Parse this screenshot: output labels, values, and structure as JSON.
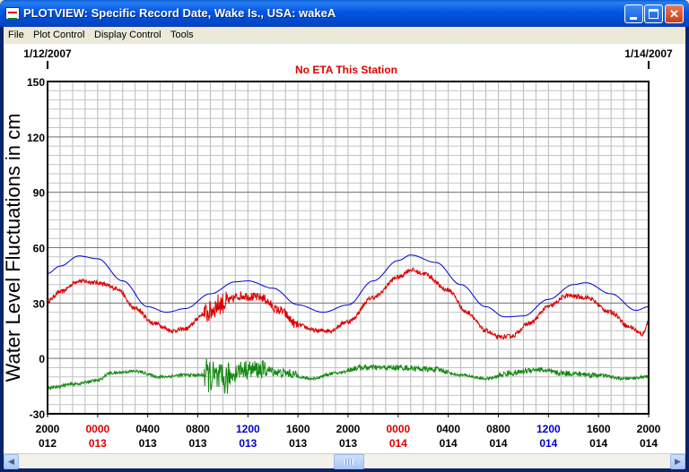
{
  "window": {
    "title": "PLOTVIEW: Specific Record Date, Wake Is., USA: wakeA",
    "minimize_icon": "minimize-icon",
    "maximize_icon": "maximize-icon",
    "close_icon": "close-icon"
  },
  "menu": {
    "items": [
      "File",
      "Plot Control",
      "Display Control",
      "Tools"
    ]
  },
  "chart_header": {
    "start_date": "1/12/2007",
    "end_date": "1/14/2007",
    "eta_message": "No ETA This Station",
    "eta_color": "#dd0000"
  },
  "chart_data": {
    "type": "line",
    "title": "No ETA This Station",
    "ylabel": "Water Level Fluctuations in cm",
    "xlabel": "",
    "ylim": [
      -30,
      150
    ],
    "yticks": [
      -30,
      0,
      30,
      60,
      90,
      120,
      150
    ],
    "grid": true,
    "x_unit": "hours since first tick (2000 day 012)",
    "xlim": [
      0,
      48
    ],
    "xticks": [
      {
        "x": 0,
        "time": "2000",
        "day": "012",
        "time_color": "#000000",
        "day_color": "#000000"
      },
      {
        "x": 4,
        "time": "0000",
        "day": "013",
        "time_color": "#dd0000",
        "day_color": "#dd0000"
      },
      {
        "x": 8,
        "time": "0400",
        "day": "013",
        "time_color": "#000000",
        "day_color": "#000000"
      },
      {
        "x": 12,
        "time": "0800",
        "day": "013",
        "time_color": "#000000",
        "day_color": "#000000"
      },
      {
        "x": 16,
        "time": "1200",
        "day": "013",
        "time_color": "#0000cc",
        "day_color": "#0000cc"
      },
      {
        "x": 20,
        "time": "1600",
        "day": "013",
        "time_color": "#000000",
        "day_color": "#000000"
      },
      {
        "x": 24,
        "time": "2000",
        "day": "013",
        "time_color": "#000000",
        "day_color": "#000000"
      },
      {
        "x": 28,
        "time": "0000",
        "day": "014",
        "time_color": "#dd0000",
        "day_color": "#dd0000"
      },
      {
        "x": 32,
        "time": "0400",
        "day": "014",
        "time_color": "#000000",
        "day_color": "#000000"
      },
      {
        "x": 36,
        "time": "0800",
        "day": "014",
        "time_color": "#000000",
        "day_color": "#000000"
      },
      {
        "x": 40,
        "time": "1200",
        "day": "014",
        "time_color": "#0000cc",
        "day_color": "#0000cc"
      },
      {
        "x": 44,
        "time": "1600",
        "day": "014",
        "time_color": "#000000",
        "day_color": "#000000"
      },
      {
        "x": 48,
        "time": "2000",
        "day": "014",
        "time_color": "#000000",
        "day_color": "#000000"
      }
    ],
    "series": [
      {
        "color": "#0000cc",
        "noise": 0,
        "points": [
          [
            0,
            46
          ],
          [
            1,
            50
          ],
          [
            2.5,
            55.5
          ],
          [
            4,
            54
          ],
          [
            6,
            42
          ],
          [
            8,
            28
          ],
          [
            9.5,
            25
          ],
          [
            11,
            27
          ],
          [
            13,
            35
          ],
          [
            15,
            41.5
          ],
          [
            16,
            42
          ],
          [
            18,
            38
          ],
          [
            20,
            29
          ],
          [
            22,
            25
          ],
          [
            24,
            29
          ],
          [
            26,
            42
          ],
          [
            28,
            53
          ],
          [
            29,
            56
          ],
          [
            31,
            52
          ],
          [
            33,
            40
          ],
          [
            35,
            28
          ],
          [
            36.5,
            22.5
          ],
          [
            38,
            23
          ],
          [
            40,
            32
          ],
          [
            42,
            40
          ],
          [
            43,
            41
          ],
          [
            45,
            35
          ],
          [
            47,
            26
          ],
          [
            48,
            28
          ]
        ]
      },
      {
        "color": "#dd0000",
        "noise": 1.2,
        "burst": [
          [
            12.5,
            14.5,
            6
          ],
          [
            14.5,
            20,
            2.5
          ]
        ],
        "points": [
          [
            0,
            31
          ],
          [
            1,
            36
          ],
          [
            2.5,
            42
          ],
          [
            4,
            41
          ],
          [
            5.5,
            38
          ],
          [
            7,
            27
          ],
          [
            8.5,
            19
          ],
          [
            10,
            15
          ],
          [
            11,
            16
          ],
          [
            12.5,
            24
          ],
          [
            14,
            30
          ],
          [
            15.5,
            34
          ],
          [
            17,
            33
          ],
          [
            18.5,
            26
          ],
          [
            20,
            18
          ],
          [
            21.5,
            15
          ],
          [
            22.5,
            15
          ],
          [
            24,
            20
          ],
          [
            26,
            33
          ],
          [
            28,
            44
          ],
          [
            29,
            48
          ],
          [
            30,
            46
          ],
          [
            32,
            37
          ],
          [
            33.5,
            25
          ],
          [
            35,
            15
          ],
          [
            36,
            11.5
          ],
          [
            37,
            12
          ],
          [
            38.5,
            19
          ],
          [
            40,
            28
          ],
          [
            41.5,
            34
          ],
          [
            43,
            33
          ],
          [
            45,
            25
          ],
          [
            46.5,
            17
          ],
          [
            47.5,
            13
          ],
          [
            48,
            20
          ]
        ]
      },
      {
        "color": "#118811",
        "noise": 0.8,
        "burst": [
          [
            12.5,
            14.5,
            9
          ],
          [
            14.5,
            17.5,
            5
          ],
          [
            17.5,
            20,
            2.5
          ],
          [
            24,
            32,
            1.5
          ],
          [
            36,
            44,
            1.5
          ]
        ],
        "points": [
          [
            0,
            -16
          ],
          [
            2,
            -14
          ],
          [
            4,
            -12
          ],
          [
            5,
            -8
          ],
          [
            7,
            -7
          ],
          [
            9,
            -10
          ],
          [
            11,
            -9
          ],
          [
            12.5,
            -9
          ],
          [
            14,
            -12
          ],
          [
            15.5,
            -6
          ],
          [
            17,
            -6
          ],
          [
            19,
            -8
          ],
          [
            21,
            -11
          ],
          [
            23,
            -8
          ],
          [
            25,
            -5
          ],
          [
            28,
            -5
          ],
          [
            31,
            -6
          ],
          [
            33,
            -9
          ],
          [
            35,
            -11
          ],
          [
            37,
            -8
          ],
          [
            39,
            -6
          ],
          [
            41,
            -8
          ],
          [
            44,
            -9
          ],
          [
            46,
            -11
          ],
          [
            48,
            -10
          ]
        ]
      }
    ]
  },
  "scrollbar": {
    "left_icon": "arrow-left-icon",
    "right_icon": "arrow-right-icon",
    "left_glyph": "◀",
    "right_glyph": "▶"
  }
}
